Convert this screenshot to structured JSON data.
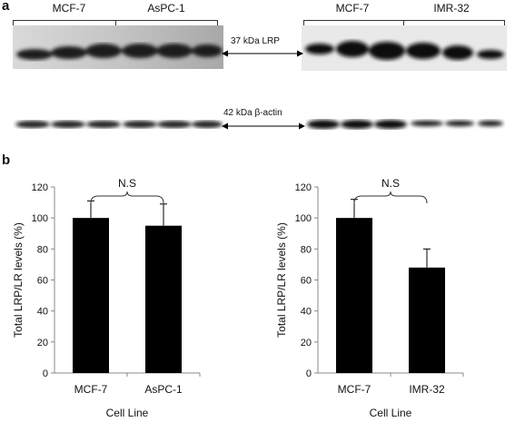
{
  "panels": {
    "a": "a",
    "b": "b"
  },
  "blot": {
    "left_groups": [
      "MCF-7",
      "AsPC-1"
    ],
    "right_groups": [
      "MCF-7",
      "IMR-32"
    ],
    "markers": [
      "37 kDa LRP",
      "42 kDa β-actin"
    ]
  },
  "chart_data": [
    {
      "type": "bar",
      "categories": [
        "MCF-7",
        "AsPC-1"
      ],
      "values": [
        100,
        95
      ],
      "errors": [
        11,
        14
      ],
      "xlabel": "Cell Line",
      "ylabel": "Total LRP/LR levels (%)",
      "ylim": [
        0,
        120
      ],
      "yticks": [
        "0",
        "20",
        "40",
        "60",
        "80",
        "100",
        "120"
      ],
      "annotation": "N.S",
      "grid": false,
      "bar_color": "#000000"
    },
    {
      "type": "bar",
      "categories": [
        "MCF-7",
        "IMR-32"
      ],
      "values": [
        100,
        68
      ],
      "errors": [
        12,
        12
      ],
      "xlabel": "Cell Line",
      "ylabel": "Total LRP/LR levels (%)",
      "ylim": [
        0,
        120
      ],
      "yticks": [
        "0",
        "20",
        "40",
        "60",
        "80",
        "100",
        "120"
      ],
      "annotation": "N.S",
      "grid": false,
      "bar_color": "#000000"
    }
  ]
}
